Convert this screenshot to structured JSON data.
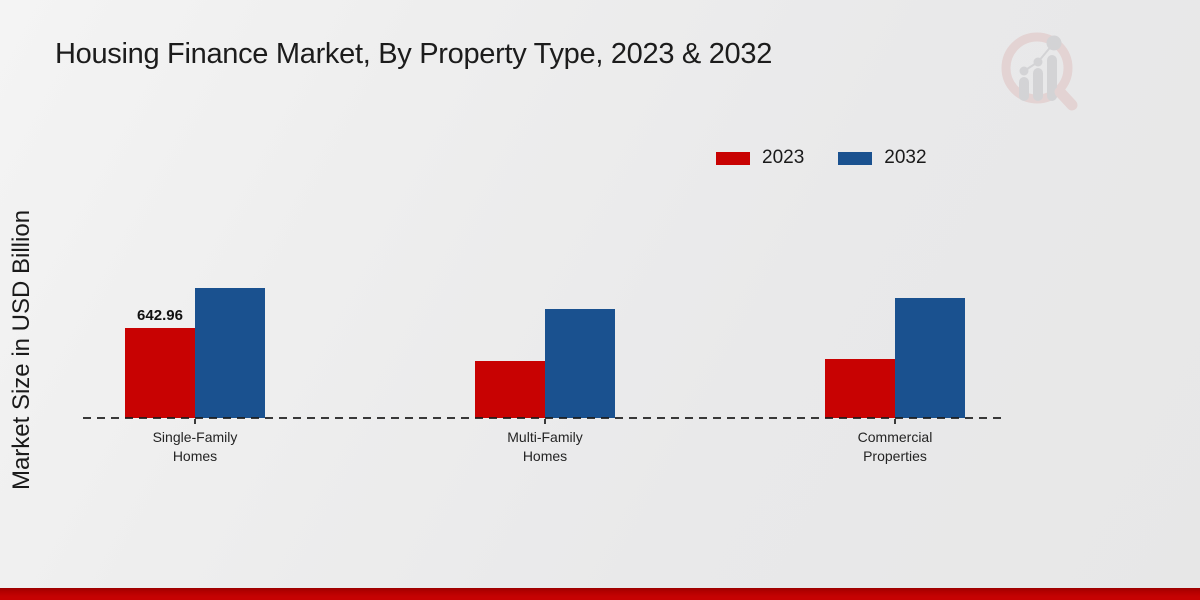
{
  "title": "Housing Finance Market, By Property Type, 2023 & 2032",
  "y_axis_label": "Market Size in USD Billion",
  "legend": {
    "position": "top-right",
    "items": [
      {
        "label": "2023",
        "color": "#c80202"
      },
      {
        "label": "2032",
        "color": "#1a518f"
      }
    ]
  },
  "chart_data": {
    "type": "bar",
    "title": "Housing Finance Market, By Property Type, 2023 & 2032",
    "categories": [
      "Single-Family Homes",
      "Multi-Family Homes",
      "Commercial Properties"
    ],
    "series": [
      {
        "name": "2023",
        "color": "#c80202",
        "values": [
          642.96,
          405,
          420
        ]
      },
      {
        "name": "2032",
        "color": "#1a518f",
        "values": [
          925,
          780,
          860
        ]
      }
    ],
    "xlabel": "",
    "ylabel": "Market Size in USD Billion",
    "ylim": [
      0,
      2000
    ],
    "grid": false,
    "y_axis_ticks_visible": false,
    "baseline_style": "dashed",
    "legend_position": "top-right",
    "annotations": [
      {
        "series_index": 0,
        "category_index": 0,
        "text": "642.96"
      }
    ]
  },
  "branding": {
    "logo_name": "market-research-future-logo",
    "logo_colors": {
      "ring": "#dfc2c2",
      "bars": "#c2c2c6"
    }
  },
  "footer": {
    "accent_bar_color": "#c60202"
  }
}
